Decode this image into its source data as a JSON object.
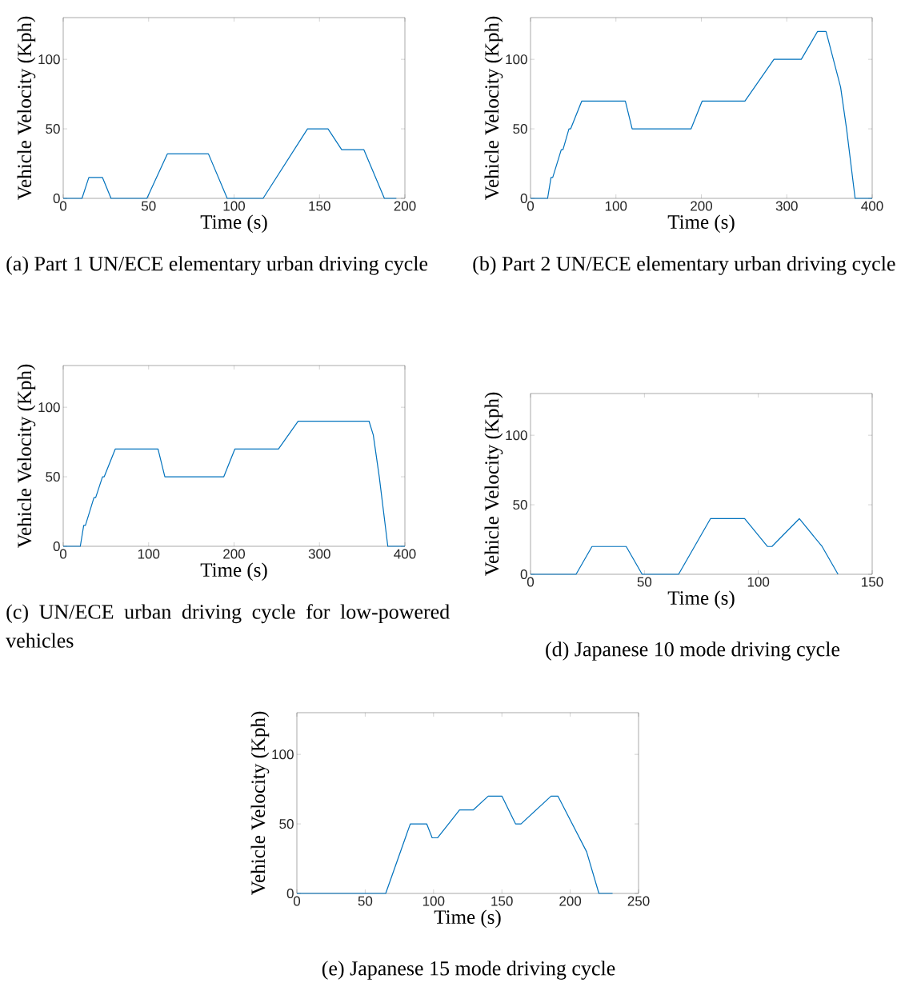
{
  "chart_data": [
    {
      "type": "line",
      "title": "(a) Part 1 UN/ECE elementary urban driving cycle",
      "xlabel": "Time (s)",
      "ylabel": "Vehicle Velocity (Kph)",
      "color": "#0072bd",
      "x": [
        0,
        11,
        15,
        23,
        28,
        49,
        61,
        85,
        96,
        117,
        143,
        155,
        163,
        176,
        188,
        195
      ],
      "values": [
        0,
        0,
        15,
        15,
        0,
        0,
        32,
        32,
        0,
        0,
        50,
        50,
        35,
        35,
        0,
        0
      ],
      "xlim": [
        0,
        200
      ],
      "ylim": [
        0,
        130
      ],
      "xticks": [
        0,
        50,
        100,
        150,
        200
      ],
      "yticks": [
        0,
        50,
        100
      ]
    },
    {
      "type": "line",
      "title": "(b) Part 2 UN/ECE elementary urban driving cycle",
      "xlabel": "Time (s)",
      "ylabel": "Vehicle Velocity (Kph)",
      "color": "#0072bd",
      "x": [
        0,
        20,
        24,
        26,
        36,
        38,
        45,
        47,
        60,
        111,
        119,
        188,
        201,
        251,
        285,
        317,
        336,
        346,
        363,
        370,
        380,
        400
      ],
      "values": [
        0,
        0,
        15,
        15,
        35,
        35,
        50,
        50,
        70,
        70,
        50,
        50,
        70,
        70,
        100,
        100,
        120,
        120,
        80,
        50,
        0,
        0
      ],
      "xlim": [
        0,
        400
      ],
      "ylim": [
        0,
        130
      ],
      "xticks": [
        0,
        100,
        200,
        300,
        400
      ],
      "yticks": [
        0,
        50,
        100
      ]
    },
    {
      "type": "line",
      "title": "(c) UN/ECE urban driving cycle for low-powered vehicles",
      "xlabel": "Time (s)",
      "ylabel": "Vehicle Velocity (Kph)",
      "color": "#0072bd",
      "x": [
        0,
        20,
        24,
        26,
        36,
        38,
        46,
        48,
        61,
        111,
        119,
        188,
        201,
        252,
        275,
        358,
        363,
        370,
        380,
        400
      ],
      "values": [
        0,
        0,
        15,
        15,
        35,
        35,
        50,
        50,
        70,
        70,
        50,
        50,
        70,
        70,
        90,
        90,
        80,
        50,
        0,
        0
      ],
      "xlim": [
        0,
        400
      ],
      "ylim": [
        0,
        130
      ],
      "xticks": [
        0,
        100,
        200,
        300,
        400
      ],
      "yticks": [
        0,
        50,
        100
      ]
    },
    {
      "type": "line",
      "title": "(d) Japanese 10 mode driving cycle",
      "xlabel": "Time (s)",
      "ylabel": "Vehicle Velocity (Kph)",
      "color": "#0072bd",
      "x": [
        0,
        20,
        27,
        42,
        49,
        65,
        79,
        94,
        104,
        106,
        118,
        128,
        135
      ],
      "values": [
        0,
        0,
        20,
        20,
        0,
        0,
        40,
        40,
        20,
        20,
        40,
        20,
        0
      ],
      "xlim": [
        0,
        150
      ],
      "ylim": [
        0,
        130
      ],
      "xticks": [
        0,
        50,
        100,
        150
      ],
      "yticks": [
        0,
        50,
        100
      ]
    },
    {
      "type": "line",
      "title": "(e) Japanese 15 mode driving cycle",
      "xlabel": "Time (s)",
      "ylabel": "Vehicle Velocity (Kph)",
      "color": "#0072bd",
      "x": [
        0,
        65,
        83,
        95,
        99,
        103,
        119,
        129,
        140,
        150,
        160,
        164,
        186,
        191,
        212,
        221,
        231
      ],
      "values": [
        0,
        0,
        50,
        50,
        40,
        40,
        60,
        60,
        70,
        70,
        50,
        50,
        70,
        70,
        30,
        0,
        0
      ],
      "xlim": [
        0,
        250
      ],
      "ylim": [
        0,
        130
      ],
      "xticks": [
        0,
        50,
        100,
        150,
        200,
        250
      ],
      "yticks": [
        0,
        50,
        100
      ]
    }
  ]
}
